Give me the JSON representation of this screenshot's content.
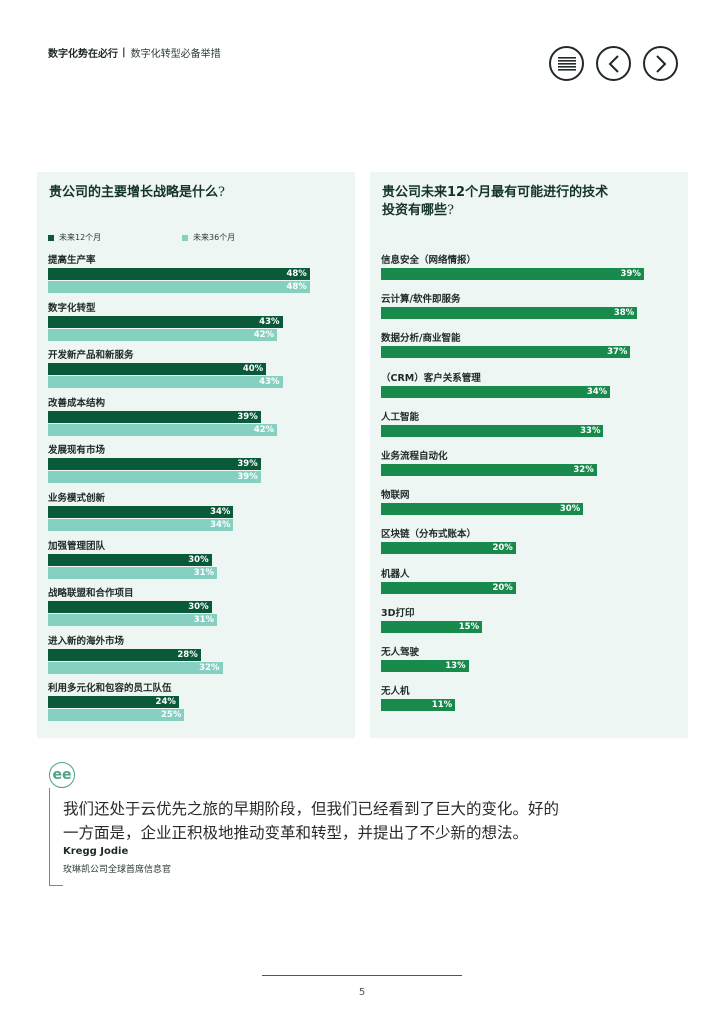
{
  "header": {
    "title": "数字化势在必行",
    "separator": "|",
    "subtitle": "数字化转型必备举措"
  },
  "nav": {
    "menu_icon": "menu-lines-icon",
    "prev_icon": "chevron-left-icon",
    "next_icon": "chevron-right-icon"
  },
  "left_panel": {
    "title": "贵公司的主要增长战略是什么",
    "title_q": "?",
    "legend": [
      "未来12个月",
      "未来36个月"
    ]
  },
  "right_panel": {
    "title_line1": "贵公司未来12个月最有可能进行的技术",
    "title_line2": "投资有哪些",
    "title_q": "?"
  },
  "chart_data": [
    {
      "type": "bar",
      "orientation": "horizontal",
      "title": "贵公司的主要增长战略是什么?",
      "categories": [
        "提高生产率",
        "数字化转型",
        "开发新产品和新服务",
        "改善成本结构",
        "发展现有市场",
        "业务模式创新",
        "加强管理团队",
        "战略联盟和合作项目",
        "进入新的海外市场",
        "利用多元化和包容的员工队伍"
      ],
      "series": [
        {
          "name": "未来12个月",
          "values": [
            48,
            43,
            40,
            39,
            39,
            34,
            30,
            30,
            28,
            24
          ],
          "labels": [
            "48%",
            "43%",
            "40%",
            "39%",
            "39%",
            "34%",
            "30%",
            "30%",
            "28%",
            "24%"
          ]
        },
        {
          "name": "未来36个月",
          "values": [
            48,
            42,
            43,
            42,
            39,
            34,
            31,
            31,
            32,
            25
          ],
          "labels": [
            "48%",
            "42%",
            "43%",
            "42%",
            "39%",
            "34%",
            "31%",
            "31%",
            "32%",
            "25%"
          ]
        }
      ],
      "xlim": [
        0,
        55
      ],
      "legend": "top-left",
      "colors": [
        "#0a5a3a",
        "#86d0c1"
      ]
    },
    {
      "type": "bar",
      "orientation": "horizontal",
      "title": "贵公司未来12个月最有可能进行的技术投资有哪些?",
      "categories": [
        "信息安全（网络情报）",
        "云计算/软件即服务",
        "数据分析/商业智能",
        "（CRM）客户关系管理",
        "人工智能",
        "业务流程自动化",
        "物联网",
        "区块链（分布式账本）",
        "机器人",
        "3D打印",
        "无人驾驶",
        "无人机"
      ],
      "values": [
        39,
        38,
        37,
        34,
        33,
        32,
        30,
        20,
        20,
        15,
        13,
        11
      ],
      "labels": [
        "39%",
        "38%",
        "37%",
        "34%",
        "33%",
        "32%",
        "30%",
        "20%",
        "20%",
        "15%",
        "13%",
        "11%"
      ],
      "xlim": [
        0,
        44.5
      ],
      "colors": [
        "#178a4c"
      ]
    }
  ],
  "quote": {
    "icon": "quote-icon",
    "glyph": "ee",
    "line1": "我们还处于云优先之旅的早期阶段，但我们已经看到了巨大的变化。好的",
    "line2": "一方面是，企业正积极地推动变革和转型，并提出了不少新的想法。",
    "author": "Kregg Jodie",
    "role": "玫琳凯公司全球首席信息官"
  },
  "footer": {
    "page_number": "5"
  }
}
